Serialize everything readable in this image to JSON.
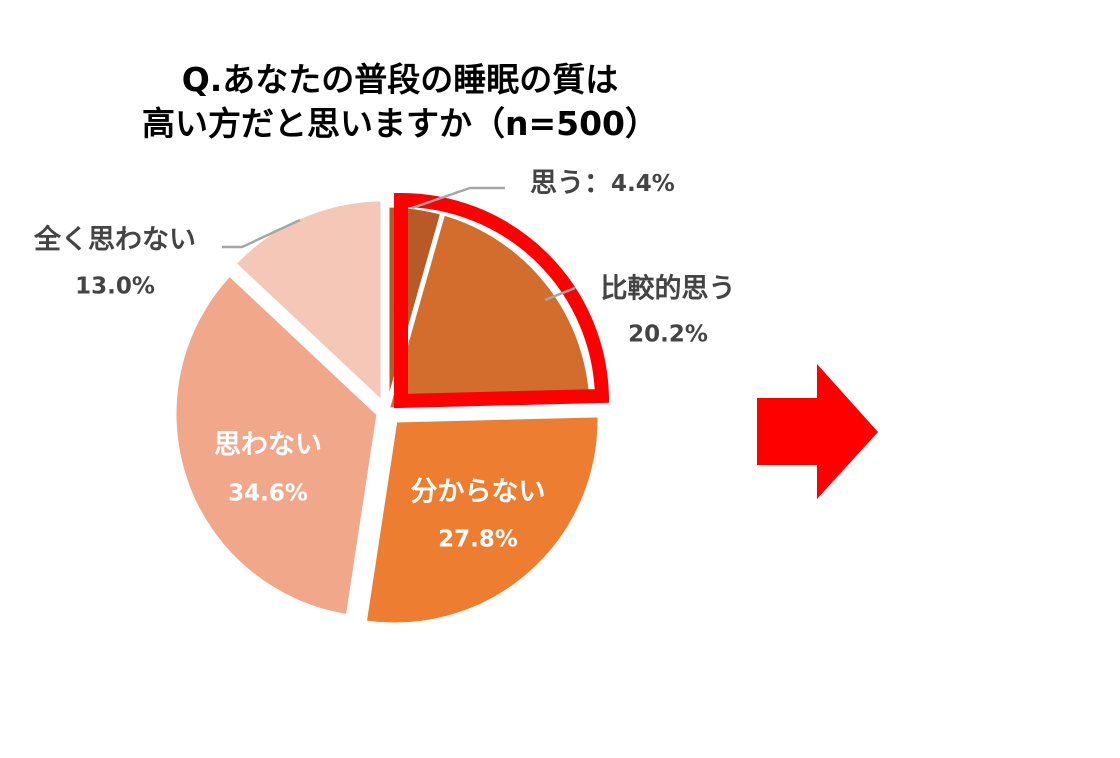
{
  "chart_data": {
    "type": "pie",
    "title_lines": [
      "Q.あなたの普段の睡眠の質は",
      "高い方だと思いますか（n=500）"
    ],
    "slices": [
      {
        "label": "思う",
        "value": 4.4,
        "value_text": "4.4%",
        "color": "#B85A27"
      },
      {
        "label": "比較的思う",
        "value": 20.2,
        "value_text": "20.2%",
        "color": "#D26D2D"
      },
      {
        "label": "分からない",
        "value": 27.8,
        "value_text": "27.8%",
        "color": "#ED7D31"
      },
      {
        "label": "思わない",
        "value": 34.6,
        "value_text": "34.6%",
        "color": "#F0A78A"
      },
      {
        "label": "全く思わない",
        "value": 13.0,
        "value_text": "13.0%",
        "color": "#F4C7B7"
      }
    ],
    "highlight": {
      "slices": [
        "思う",
        "比較的思う"
      ],
      "color": "#FF0000"
    },
    "arrow_color": "#FF0000"
  }
}
